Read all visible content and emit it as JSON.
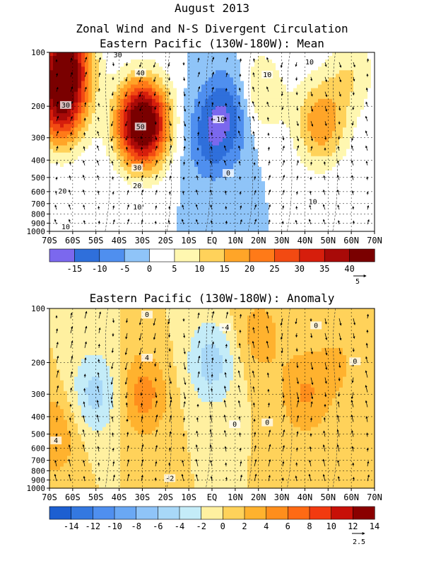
{
  "header": {
    "title_line1": "August 2013",
    "title_line2": "Zonal Wind and N-S Divergent Circulation"
  },
  "chart_data": [
    {
      "type": "heatmap",
      "title": "Eastern Pacific (130W-180W): Mean",
      "x_ticks": [
        "70S",
        "60S",
        "50S",
        "40S",
        "30S",
        "20S",
        "10S",
        "EQ",
        "10N",
        "20N",
        "30N",
        "40N",
        "50N",
        "60N",
        "70N"
      ],
      "y_ticks": [
        "100",
        "200",
        "300",
        "400",
        "500",
        "600",
        "700",
        "800",
        "900",
        "1000"
      ],
      "y_log_scale": true,
      "y_range_hpa": [
        100,
        1000
      ],
      "grid": true,
      "colorbar_labels": [
        "-15",
        "-10",
        "-5",
        "0",
        "5",
        "10",
        "15",
        "20",
        "25",
        "30",
        "35",
        "40"
      ],
      "colorbar_colors": [
        "#7b68ee",
        "#2f6fdb",
        "#4f8fef",
        "#8fc4f8",
        "#ffffff",
        "#fff7b0",
        "#ffd25a",
        "#ffa528",
        "#ff7a18",
        "#f24a12",
        "#d61e0c",
        "#a80a08",
        "#7a0000"
      ],
      "contour_labels": [
        "30",
        "40",
        "50",
        "30",
        "20",
        "10",
        "30",
        "20",
        "10",
        "10",
        "10",
        "-10",
        "0",
        "10"
      ],
      "vector_reference": "5",
      "peaks": [
        {
          "lat": -30,
          "p": 250,
          "value": 52
        },
        {
          "lat": -65,
          "p": 200,
          "value": 33
        },
        {
          "lat": -63,
          "p": 110,
          "value": 38
        },
        {
          "lat": 0,
          "p": 300,
          "value": -12
        },
        {
          "lat": 8,
          "p": 200,
          "value": -12
        },
        {
          "lat": 20,
          "p": 170,
          "value": 12
        },
        {
          "lat": 47,
          "p": 250,
          "value": 19
        },
        {
          "lat": 60,
          "p": 130,
          "value": 9
        }
      ]
    },
    {
      "type": "heatmap",
      "title": "Eastern Pacific (130W-180W): Anomaly",
      "x_ticks": [
        "70S",
        "60S",
        "50S",
        "40S",
        "30S",
        "20S",
        "10S",
        "EQ",
        "10N",
        "20N",
        "30N",
        "40N",
        "50N",
        "60N",
        "70N"
      ],
      "y_ticks": [
        "100",
        "200",
        "300",
        "400",
        "500",
        "600",
        "700",
        "800",
        "900",
        "1000"
      ],
      "y_log_scale": true,
      "y_range_hpa": [
        100,
        1000
      ],
      "grid": true,
      "colorbar_labels": [
        "-14",
        "-12",
        "-10",
        "-8",
        "-6",
        "-4",
        "-2",
        "0",
        "2",
        "4",
        "6",
        "8",
        "10",
        "12",
        "14"
      ],
      "colorbar_colors": [
        "#1d5fd1",
        "#3478e0",
        "#4f8fef",
        "#6aa8f4",
        "#8fc4f8",
        "#a8d8f8",
        "#c4ecf8",
        "#fff0a0",
        "#ffd25a",
        "#ffb22e",
        "#ff8e1c",
        "#ff6a14",
        "#f23a10",
        "#c81008",
        "#8a0000"
      ],
      "contour_labels": [
        "0",
        "-4",
        "4",
        "0",
        "0",
        "4",
        "0",
        "0",
        "-2"
      ],
      "vector_reference": "2.5",
      "peaks": [
        {
          "lat": -30,
          "p": 300,
          "value": 5
        },
        {
          "lat": -50,
          "p": 300,
          "value": -5
        },
        {
          "lat": 0,
          "p": 200,
          "value": -5
        },
        {
          "lat": 40,
          "p": 300,
          "value": 4
        },
        {
          "lat": 20,
          "p": 140,
          "value": 3
        },
        {
          "lat": 55,
          "p": 200,
          "value": 2
        },
        {
          "lat": -68,
          "p": 500,
          "value": 4
        }
      ]
    }
  ]
}
